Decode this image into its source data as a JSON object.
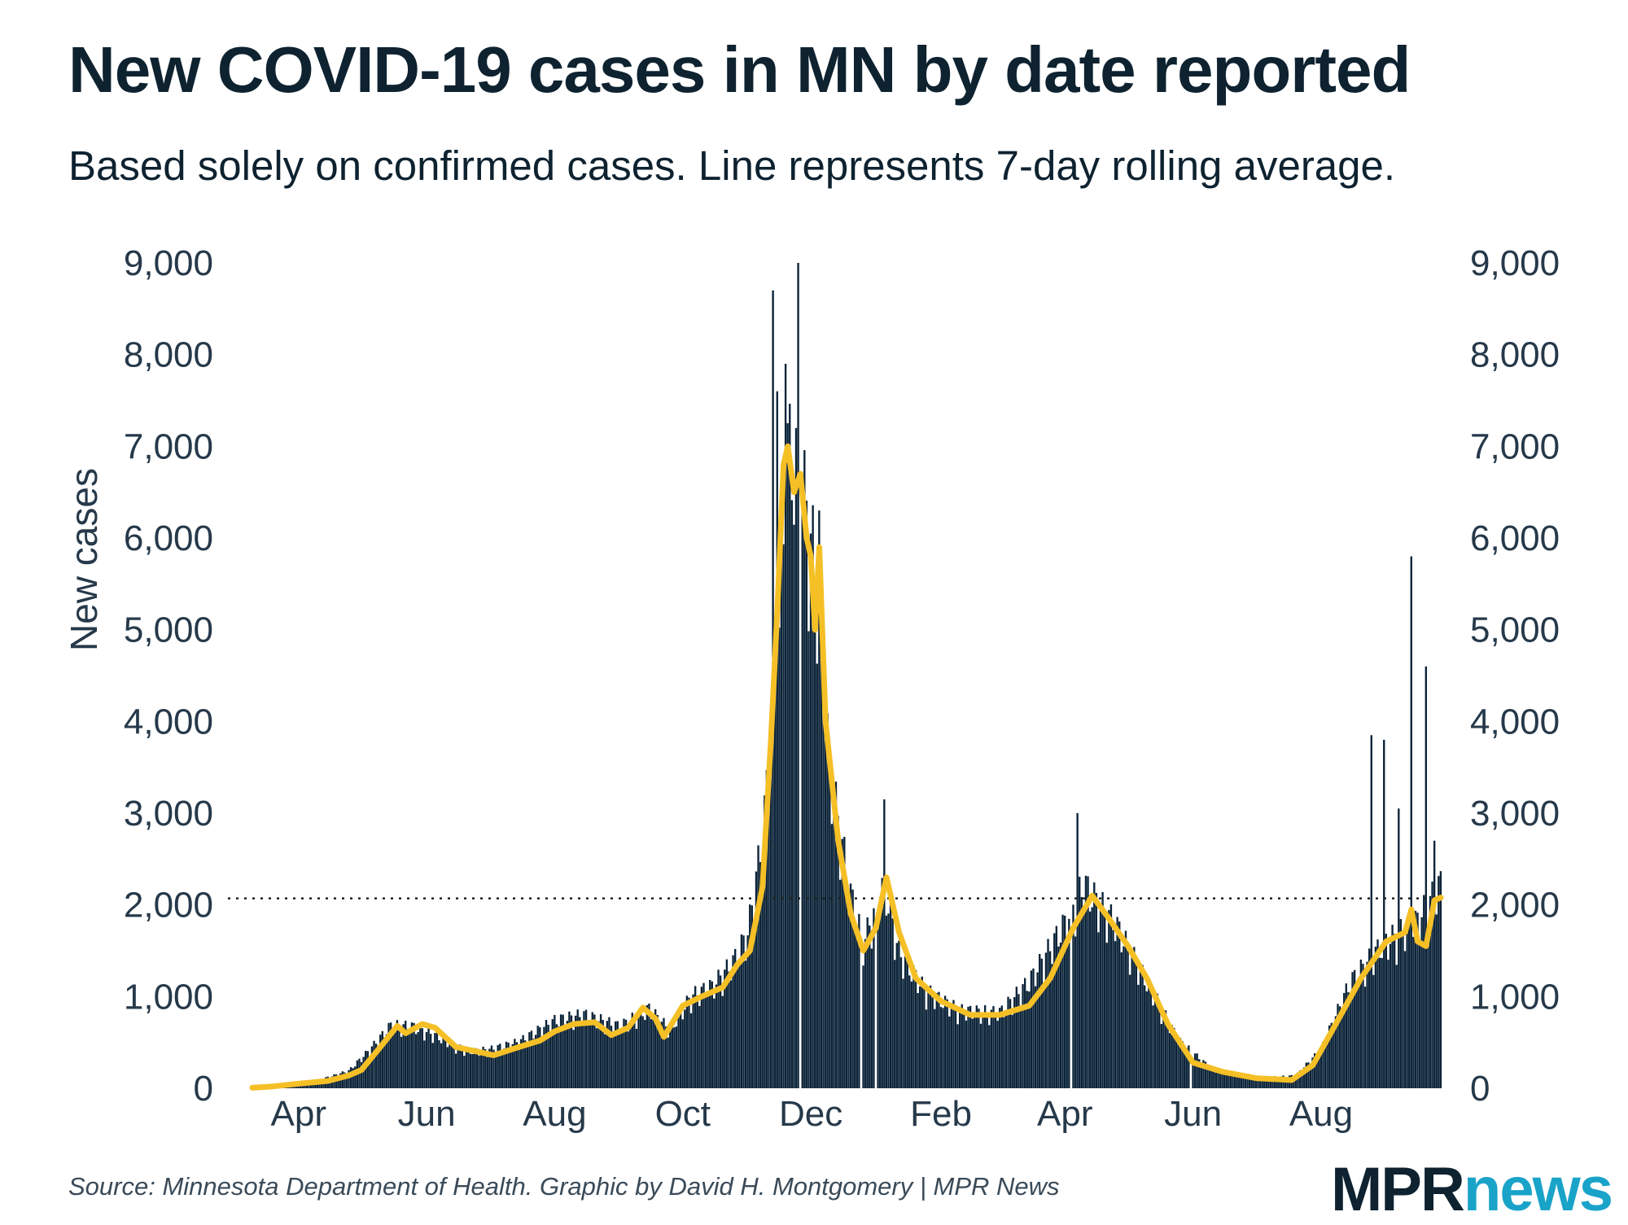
{
  "title": "New COVID-19 cases in MN by date reported",
  "subtitle": "Based solely on confirmed cases. Line represents 7-day rolling average.",
  "source": "Source: Minnesota Department of Health. Graphic by David H. Montgomery | MPR News",
  "logo": {
    "part1": "MPR",
    "part2": "news"
  },
  "colors": {
    "bars": "#0b2338",
    "line": "#f5bf26",
    "text": "#0e2230",
    "logo_accent": "#1aa3c9"
  },
  "chart_data": {
    "type": "bar",
    "ylabel": "New cases",
    "ylim": [
      0,
      9000
    ],
    "yticks": [
      0,
      1000,
      2000,
      3000,
      4000,
      5000,
      6000,
      7000,
      8000,
      9000
    ],
    "ytick_labels": [
      "0",
      "1,000",
      "2,000",
      "3,000",
      "4,000",
      "5,000",
      "6,000",
      "7,000",
      "8,000",
      "9,000"
    ],
    "xticks": [
      {
        "label": "Apr",
        "date": "2020-04-01"
      },
      {
        "label": "Jun",
        "date": "2020-06-01"
      },
      {
        "label": "Aug",
        "date": "2020-08-01"
      },
      {
        "label": "Oct",
        "date": "2020-10-01"
      },
      {
        "label": "Dec",
        "date": "2020-12-01"
      },
      {
        "label": "Feb",
        "date": "2021-02-01"
      },
      {
        "label": "Apr",
        "date": "2021-04-01"
      },
      {
        "label": "Jun",
        "date": "2021-06-01"
      },
      {
        "label": "Aug",
        "date": "2021-08-01"
      }
    ],
    "xrange": [
      "2020-03-10",
      "2021-09-27"
    ],
    "reference_line": {
      "value": 2070,
      "style": "dotted"
    },
    "series": [
      {
        "kind": "bar",
        "date_anchors": [
          [
            "2020-03-10",
            5
          ],
          [
            "2020-03-25",
            40
          ],
          [
            "2020-04-10",
            80
          ],
          [
            "2020-04-25",
            180
          ],
          [
            "2020-05-05",
            400
          ],
          [
            "2020-05-15",
            650
          ],
          [
            "2020-05-25",
            640
          ],
          [
            "2020-06-05",
            550
          ],
          [
            "2020-06-20",
            380
          ],
          [
            "2020-07-01",
            400
          ],
          [
            "2020-07-15",
            480
          ],
          [
            "2020-08-01",
            700
          ],
          [
            "2020-08-15",
            760
          ],
          [
            "2020-09-01",
            640
          ],
          [
            "2020-09-15",
            820
          ],
          [
            "2020-09-25",
            600
          ],
          [
            "2020-10-05",
            950
          ],
          [
            "2020-10-15",
            1050
          ],
          [
            "2020-10-25",
            1300
          ],
          [
            "2020-11-01",
            1600
          ],
          [
            "2020-11-08",
            2600
          ],
          [
            "2020-11-15",
            4300
          ],
          [
            "2020-11-20",
            6600
          ],
          [
            "2020-11-27",
            6200
          ],
          [
            "2020-12-03",
            5400
          ],
          [
            "2020-12-10",
            3300
          ],
          [
            "2020-12-20",
            2000
          ],
          [
            "2020-12-26",
            1500
          ],
          [
            "2021-01-05",
            2100
          ],
          [
            "2021-01-12",
            1400
          ],
          [
            "2021-01-25",
            1000
          ],
          [
            "2021-02-10",
            800
          ],
          [
            "2021-03-01",
            780
          ],
          [
            "2021-03-15",
            1100
          ],
          [
            "2021-04-01",
            1700
          ],
          [
            "2021-04-10",
            2100
          ],
          [
            "2021-04-25",
            1700
          ],
          [
            "2021-05-10",
            1100
          ],
          [
            "2021-05-25",
            500
          ],
          [
            "2021-06-10",
            200
          ],
          [
            "2021-07-01",
            100
          ],
          [
            "2021-07-20",
            130
          ],
          [
            "2021-08-01",
            400
          ],
          [
            "2021-08-15",
            1100
          ],
          [
            "2021-08-31",
            1500
          ],
          [
            "2021-09-15",
            1700
          ],
          [
            "2021-09-27",
            2100
          ]
        ],
        "spikes": [
          [
            "2020-11-13",
            8700
          ],
          [
            "2020-11-15",
            7600
          ],
          [
            "2020-11-19",
            7900
          ],
          [
            "2020-11-25",
            9000
          ],
          [
            "2020-11-26",
            8950
          ],
          [
            "2020-12-05",
            6300
          ],
          [
            "2021-01-05",
            3150
          ],
          [
            "2021-04-07",
            3000
          ],
          [
            "2021-08-25",
            3850
          ],
          [
            "2021-08-31",
            3800
          ],
          [
            "2021-09-07",
            3050
          ],
          [
            "2021-09-13",
            5800
          ],
          [
            "2021-09-20",
            4600
          ],
          [
            "2021-09-24",
            2700
          ]
        ],
        "gaps": [
          "2020-11-26",
          "2020-12-25",
          "2021-01-01",
          "2021-04-04",
          "2021-05-31"
        ]
      },
      {
        "kind": "line",
        "points": [
          [
            "2020-03-10",
            5
          ],
          [
            "2020-03-20",
            20
          ],
          [
            "2020-04-01",
            50
          ],
          [
            "2020-04-15",
            80
          ],
          [
            "2020-04-25",
            140
          ],
          [
            "2020-05-01",
            200
          ],
          [
            "2020-05-10",
            450
          ],
          [
            "2020-05-18",
            680
          ],
          [
            "2020-05-22",
            600
          ],
          [
            "2020-05-30",
            700
          ],
          [
            "2020-06-05",
            660
          ],
          [
            "2020-06-15",
            450
          ],
          [
            "2020-06-25",
            400
          ],
          [
            "2020-07-03",
            360
          ],
          [
            "2020-07-15",
            450
          ],
          [
            "2020-07-25",
            520
          ],
          [
            "2020-08-01",
            620
          ],
          [
            "2020-08-10",
            700
          ],
          [
            "2020-08-20",
            720
          ],
          [
            "2020-08-28",
            580
          ],
          [
            "2020-09-05",
            660
          ],
          [
            "2020-09-12",
            880
          ],
          [
            "2020-09-18",
            760
          ],
          [
            "2020-09-22",
            560
          ],
          [
            "2020-10-01",
            900
          ],
          [
            "2020-10-10",
            1000
          ],
          [
            "2020-10-20",
            1100
          ],
          [
            "2020-10-27",
            1350
          ],
          [
            "2020-11-02",
            1500
          ],
          [
            "2020-11-08",
            2200
          ],
          [
            "2020-11-12",
            3800
          ],
          [
            "2020-11-15",
            5200
          ],
          [
            "2020-11-18",
            6800
          ],
          [
            "2020-11-20",
            7000
          ],
          [
            "2020-11-23",
            6500
          ],
          [
            "2020-11-26",
            6700
          ],
          [
            "2020-11-29",
            6000
          ],
          [
            "2020-12-01",
            5800
          ],
          [
            "2020-12-03",
            5000
          ],
          [
            "2020-12-05",
            5900
          ],
          [
            "2020-12-08",
            4000
          ],
          [
            "2020-12-14",
            2700
          ],
          [
            "2020-12-20",
            1900
          ],
          [
            "2020-12-26",
            1500
          ],
          [
            "2021-01-01",
            1750
          ],
          [
            "2021-01-06",
            2300
          ],
          [
            "2021-01-12",
            1700
          ],
          [
            "2021-01-20",
            1200
          ],
          [
            "2021-02-01",
            950
          ],
          [
            "2021-02-15",
            800
          ],
          [
            "2021-03-01",
            800
          ],
          [
            "2021-03-15",
            900
          ],
          [
            "2021-03-25",
            1200
          ],
          [
            "2021-04-05",
            1750
          ],
          [
            "2021-04-14",
            2100
          ],
          [
            "2021-04-22",
            1850
          ],
          [
            "2021-05-01",
            1550
          ],
          [
            "2021-05-10",
            1200
          ],
          [
            "2021-05-20",
            700
          ],
          [
            "2021-06-01",
            280
          ],
          [
            "2021-06-15",
            180
          ],
          [
            "2021-07-01",
            110
          ],
          [
            "2021-07-18",
            90
          ],
          [
            "2021-07-28",
            250
          ],
          [
            "2021-08-08",
            700
          ],
          [
            "2021-08-20",
            1200
          ],
          [
            "2021-09-01",
            1600
          ],
          [
            "2021-09-10",
            1700
          ],
          [
            "2021-09-13",
            1950
          ],
          [
            "2021-09-16",
            1600
          ],
          [
            "2021-09-20",
            1550
          ],
          [
            "2021-09-24",
            2050
          ],
          [
            "2021-09-27",
            2080
          ]
        ]
      }
    ]
  }
}
